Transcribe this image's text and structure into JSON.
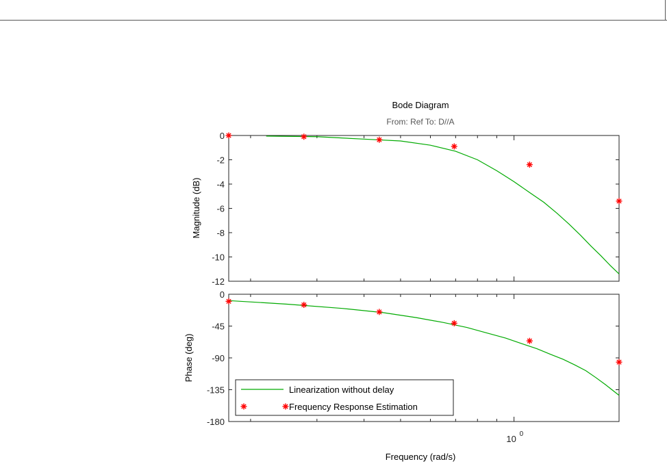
{
  "chart_data": {
    "type": "line",
    "title": "Bode Diagram",
    "subtitle": "From: Ref  To: D//A",
    "xlabel": "Frequency  (rad/s)",
    "xscale": "log",
    "x_tick_labels": [
      {
        "value": 1,
        "base": "10",
        "exp": "0"
      }
    ],
    "xlim": [
      0.175,
      1.9
    ],
    "panels": [
      {
        "ylabel": "Magnitude (dB)",
        "ylim": [
          -12,
          0
        ],
        "yticks": [
          0,
          -2,
          -4,
          -6,
          -8,
          -10,
          -12
        ],
        "series": [
          {
            "name": "Linearization without delay",
            "style": "line",
            "color": "#00aa00",
            "x": [
              0.22,
              0.3,
              0.4,
              0.5,
              0.6,
              0.7,
              0.8,
              0.9,
              1.0,
              1.1,
              1.2,
              1.3,
              1.4,
              1.5,
              1.6,
              1.7,
              1.8,
              1.9
            ],
            "y": [
              -0.05,
              -0.1,
              -0.3,
              -0.45,
              -0.8,
              -1.3,
              -2.0,
              -2.9,
              -3.8,
              -4.7,
              -5.5,
              -6.4,
              -7.3,
              -8.2,
              -9.1,
              -9.9,
              -10.7,
              -11.4
            ]
          },
          {
            "name": "Frequency Response Estimation",
            "style": "marker",
            "color": "#ff0000",
            "x": [
              0.175,
              0.277,
              0.439,
              0.694,
              1.1,
              1.9
            ],
            "y": [
              0.0,
              -0.1,
              -0.35,
              -0.9,
              -2.4,
              -5.4
            ]
          }
        ]
      },
      {
        "ylabel": "Phase (deg)",
        "ylim": [
          -180,
          0
        ],
        "yticks": [
          0,
          -45,
          -90,
          -135,
          -180
        ],
        "series": [
          {
            "name": "Linearization without delay",
            "style": "line",
            "color": "#00aa00",
            "x": [
              0.175,
              0.25,
              0.35,
              0.45,
              0.55,
              0.65,
              0.75,
              0.85,
              0.95,
              1.05,
              1.15,
              1.25,
              1.35,
              1.45,
              1.55,
              1.65,
              1.75,
              1.9
            ],
            "y": [
              -9,
              -14,
              -20,
              -26,
              -33,
              -40,
              -47,
              -55,
              -62,
              -70,
              -77,
              -85,
              -92,
              -100,
              -108,
              -118,
              -128,
              -143
            ]
          },
          {
            "name": "Frequency Response Estimation",
            "style": "marker",
            "color": "#ff0000",
            "x": [
              0.175,
              0.277,
              0.439,
              0.694,
              1.1,
              1.9
            ],
            "y": [
              -10,
              -15,
              -25,
              -41,
              -66,
              -96
            ]
          }
        ]
      }
    ],
    "legend": {
      "placement": "bottom-left",
      "entries": [
        "Linearization without delay",
        "Frequency Response Estimation"
      ]
    }
  }
}
